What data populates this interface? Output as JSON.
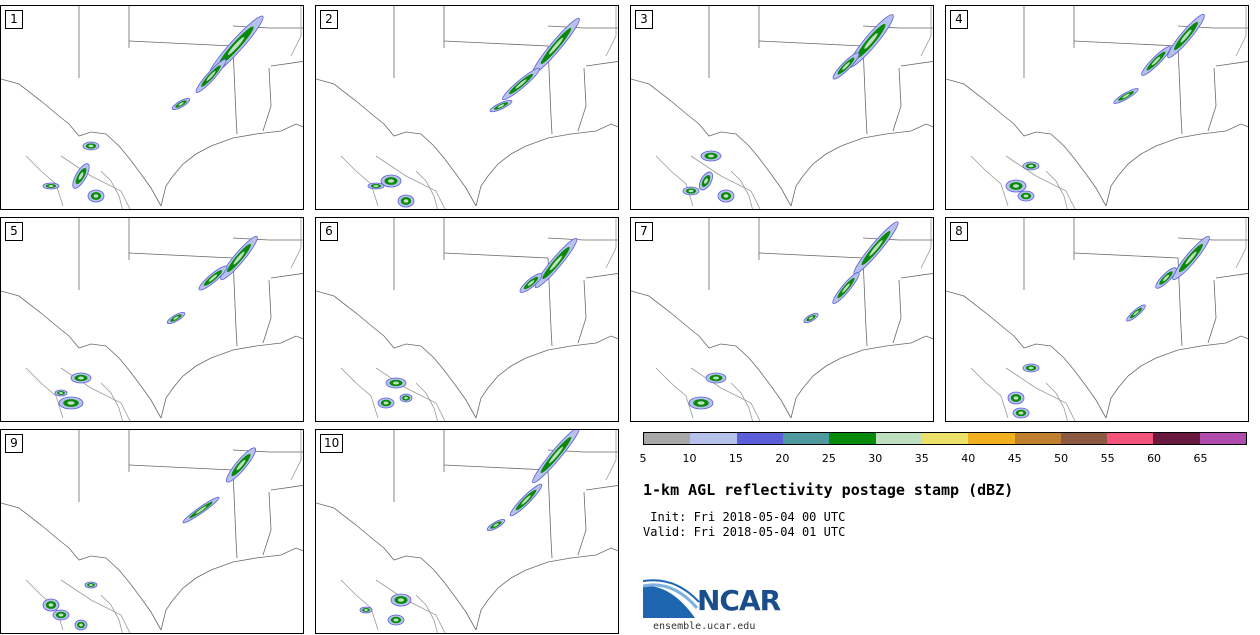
{
  "panels": [
    {
      "label": "1"
    },
    {
      "label": "2"
    },
    {
      "label": "3"
    },
    {
      "label": "4"
    },
    {
      "label": "5"
    },
    {
      "label": "6"
    },
    {
      "label": "7"
    },
    {
      "label": "8"
    },
    {
      "label": "9"
    },
    {
      "label": "10"
    }
  ],
  "colorbar": {
    "colors": [
      "#a8a8a8",
      "#b6c2ec",
      "#5a5ed8",
      "#4e9a9e",
      "#0a8a0a",
      "#bfe0bf",
      "#ece26a",
      "#f0b020",
      "#c08030",
      "#8c5a40",
      "#f4537a",
      "#6a1a3e",
      "#b04cae"
    ],
    "ticks": [
      "5",
      "10",
      "15",
      "20",
      "25",
      "30",
      "35",
      "40",
      "45",
      "50",
      "55",
      "60",
      "65"
    ]
  },
  "title": "1-km AGL reflectivity postage stamp (dBZ)",
  "init_text": " Init: Fri 2018-05-04 00 UTC",
  "valid_text": "Valid: Fri 2018-05-04 01 UTC",
  "logo": {
    "text": "NCAR",
    "site": "ensemble.ucar.edu"
  }
}
